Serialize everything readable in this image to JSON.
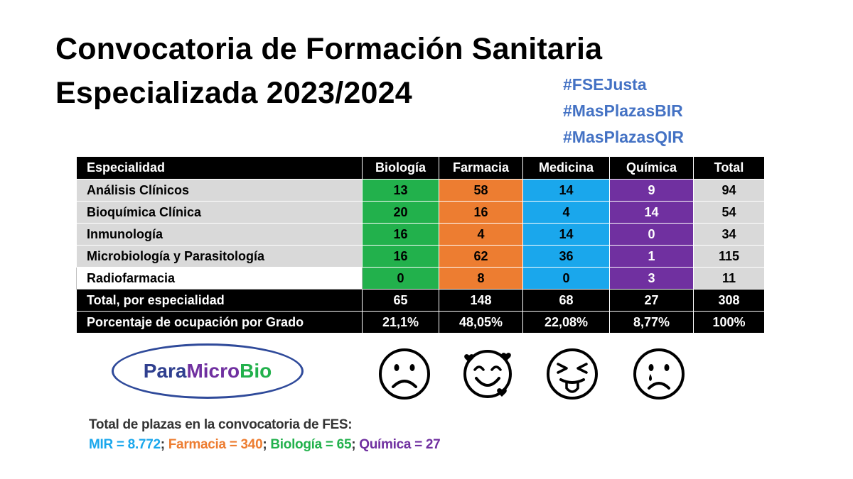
{
  "title": {
    "line1": "Convocatoria de Formación Sanitaria",
    "line2": "Especializada 2023/2024"
  },
  "hashtags": [
    "#FSEJusta",
    "#MasPlazasBIR",
    "#MasPlazasQIR"
  ],
  "table": {
    "headers": [
      "Especialidad",
      "Biología",
      "Farmacia",
      "Medicina",
      "Química",
      "Total"
    ],
    "rows": [
      {
        "name": "Análisis Clínicos",
        "values": [
          "13",
          "58",
          "14",
          "9",
          "94"
        ]
      },
      {
        "name": "Bioquímica Clínica",
        "values": [
          "20",
          "16",
          "4",
          "14",
          "54"
        ]
      },
      {
        "name": "Inmunología",
        "values": [
          "16",
          "4",
          "14",
          "0",
          "34"
        ]
      },
      {
        "name": "Microbiología y Parasitología",
        "values": [
          "16",
          "62",
          "36",
          "1",
          "115"
        ]
      },
      {
        "name": "Radiofarmacia",
        "values": [
          "0",
          "8",
          "0",
          "3",
          "11"
        ]
      }
    ],
    "total_row": {
      "name": "Total, por especialidad",
      "values": [
        "65",
        "148",
        "68",
        "27",
        "308"
      ]
    },
    "percent_row": {
      "name": "Porcentaje de ocupación por Grado",
      "values": [
        "21,1%",
        "48,05%",
        "22,08%",
        "8,77%",
        "100%"
      ]
    }
  },
  "logo": {
    "part1": "Para",
    "part2": "Micro",
    "part3": "Bio"
  },
  "emojis": [
    {
      "icon": "frowning-face-icon"
    },
    {
      "icon": "smiling-face-with-hearts-icon"
    },
    {
      "icon": "squinting-face-with-tongue-icon"
    },
    {
      "icon": "crying-face-icon"
    }
  ],
  "footer": {
    "line1": "Total de plazas en la convocatoria de FES:",
    "mir": "MIR = 8.772",
    "farmacia": "Farmacia = 340",
    "biologia": "Biología = 65",
    "quimica": "Química = 27"
  },
  "colors": {
    "biologia": "#22b14c",
    "farmacia": "#ed7d31",
    "medicina": "#1aa7ec",
    "quimica": "#7030a0",
    "hashtag": "#4472c4"
  }
}
